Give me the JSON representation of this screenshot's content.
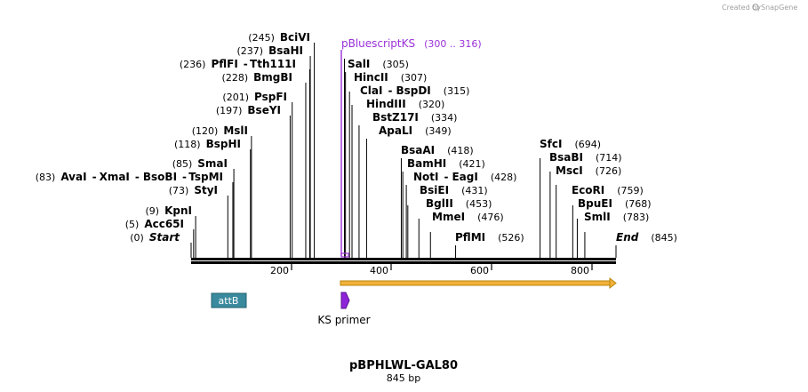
{
  "credit": {
    "created_by": "Created by",
    "brand": "SnapGene"
  },
  "map": {
    "name": "pBPHLWL-GAL80",
    "length_label": "845 bp",
    "length": 845
  },
  "ruler": {
    "ticks": [
      "200",
      "400",
      "600",
      "800"
    ]
  },
  "labels": [
    {
      "text_parts": [
        "(245)",
        "BciVI"
      ],
      "pos": 245,
      "row": 0
    },
    {
      "text_parts": [
        "(237)",
        "BsaHI"
      ],
      "pos": 237,
      "row": 1
    },
    {
      "text_parts": [
        "(236)",
        "PflFI",
        "-",
        "Tth111I"
      ],
      "pos": 236,
      "row": 2
    },
    {
      "text_parts": [
        "(228)",
        "BmgBI"
      ],
      "pos": 228,
      "row": 3
    },
    {
      "text_parts": [
        "(201)",
        "PspFI"
      ],
      "pos": 201,
      "row": 4
    },
    {
      "text_parts": [
        "(197)",
        "BseYI"
      ],
      "pos": 197,
      "row": 5
    },
    {
      "text_parts": [
        "(120)",
        "MslI"
      ],
      "pos": 120,
      "row": 6
    },
    {
      "text_parts": [
        "(118)",
        "BspHI"
      ],
      "pos": 118,
      "row": 7
    },
    {
      "text_parts": [
        "(85)",
        "SmaI"
      ],
      "pos": 85,
      "row": 8
    },
    {
      "text_parts": [
        "(83)",
        "AvaI",
        "-",
        "XmaI",
        "-",
        "BsoBI",
        "-",
        "TspMI"
      ],
      "pos": 83,
      "row": 9
    },
    {
      "text_parts": [
        "(73)",
        "StyI"
      ],
      "pos": 73,
      "row": 10
    },
    {
      "text_parts": [
        "(9)",
        "KpnI"
      ],
      "pos": 9,
      "row": 11
    },
    {
      "text_parts": [
        "(5)",
        "Acc65I"
      ],
      "pos": 5,
      "row": 12
    },
    {
      "text_parts": [
        "(0)",
        "Start"
      ],
      "pos": 0,
      "row": 13
    }
  ],
  "right_labels": [
    {
      "name": "SalI",
      "pos_label": "(305)",
      "pos": 305,
      "row": 2
    },
    {
      "name": "HincII",
      "pos_label": "(307)",
      "pos": 307,
      "row": 3
    },
    {
      "name": "ClaI",
      "sep": "-",
      "name2": "BspDI",
      "pos_label": "(315)",
      "pos": 315,
      "row": 4
    },
    {
      "name": "HindIII",
      "pos_label": "(320)",
      "pos": 320,
      "row": 5
    },
    {
      "name": "BstZ17I",
      "pos_label": "(334)",
      "pos": 334,
      "row": 6
    },
    {
      "name": "ApaLI",
      "pos_label": "(349)",
      "pos": 349,
      "row": 7
    },
    {
      "name": "BsaAI",
      "pos_label": "(418)",
      "pos": 418,
      "row": 8
    },
    {
      "name": "BamHI",
      "pos_label": "(421)",
      "pos": 421,
      "row": 9
    },
    {
      "name": "NotI",
      "sep": "-",
      "name2": "EagI",
      "pos_label": "(428)",
      "pos": 428,
      "row": 10
    },
    {
      "name": "BsiEI",
      "pos_label": "(431)",
      "pos": 431,
      "row": 11
    },
    {
      "name": "BglII",
      "pos_label": "(453)",
      "pos": 453,
      "row": 12
    },
    {
      "name": "MmeI",
      "pos_label": "(476)",
      "pos": 476,
      "row": 13
    },
    {
      "name": "PflMI",
      "pos_label": "(526)",
      "pos": 526,
      "row": 14
    },
    {
      "name": "SfcI",
      "pos_label": "(694)",
      "pos": 694,
      "row": 8
    },
    {
      "name": "BsaBI",
      "pos_label": "(714)",
      "pos": 714,
      "row": 9
    },
    {
      "name": "MscI",
      "pos_label": "(726)",
      "pos": 726,
      "row": 10
    },
    {
      "name": "EcoRI",
      "pos_label": "(759)",
      "pos": 759,
      "row": 11
    },
    {
      "name": "BpuEI",
      "pos_label": "(768)",
      "pos": 768,
      "row": 12
    },
    {
      "name": "SmlI",
      "pos_label": "(783)",
      "pos": 783,
      "row": 13
    },
    {
      "name": "End",
      "pos_label": "(845)",
      "pos": 845,
      "row": 14
    }
  ],
  "primer_site": {
    "name": "pBluescriptKS",
    "range": "(300 .. 316)",
    "start": 300,
    "end": 316
  },
  "features": {
    "attB": {
      "label": "attB",
      "color": "#3a8a9e"
    },
    "ks_primer": {
      "label": "KS primer",
      "color": "#8e24d8"
    },
    "orf": {
      "color": "#e6a323"
    }
  }
}
